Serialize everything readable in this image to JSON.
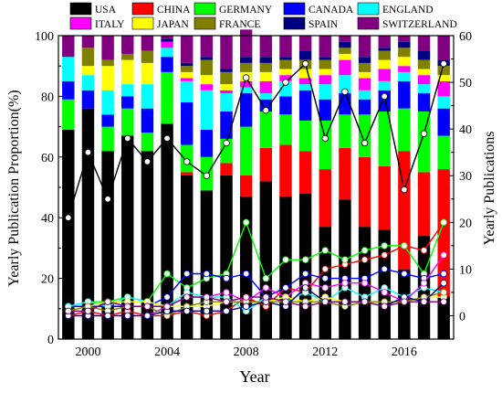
{
  "chart_data": {
    "type": "bar",
    "subtype": "stacked-bar-with-line-overlay",
    "xlabel": "Year",
    "ylabel_left": "Yearly Publication Proportion(%)",
    "ylabel_right": "Yearly Publications",
    "y_left_lim": [
      0,
      100
    ],
    "y_left_ticks": [
      0,
      20,
      40,
      60,
      80,
      100
    ],
    "y_right_lim": [
      -5,
      60
    ],
    "y_right_ticks": [
      0,
      10,
      20,
      30,
      40,
      50,
      60
    ],
    "x_tick_labels": [
      "2000",
      "2004",
      "2008",
      "2012",
      "2016"
    ],
    "grid": false,
    "legend_position": "top",
    "categories": [
      "1999",
      "2000",
      "2001",
      "2002",
      "2003",
      "2004",
      "2005",
      "2006",
      "2007",
      "2008",
      "2009",
      "2010",
      "2011",
      "2012",
      "2013",
      "2014",
      "2015",
      "2016",
      "2017",
      "2018"
    ],
    "series": [
      {
        "name": "USA",
        "color": "#000000",
        "proportion": [
          69,
          76,
          62,
          67,
          62,
          71,
          54,
          49,
          54,
          47,
          52,
          47,
          48,
          37,
          46,
          37,
          36,
          23,
          34,
          14
        ],
        "count": [
          21,
          35,
          25,
          38,
          33,
          38,
          33,
          30,
          37,
          51,
          44,
          50,
          54,
          38,
          48,
          37,
          47,
          27,
          39,
          54
        ]
      },
      {
        "name": "CHINA",
        "color": "#ff0000",
        "proportion": [
          0,
          0,
          0,
          0,
          0,
          0,
          1,
          0,
          4,
          7,
          11,
          17,
          14,
          19,
          17,
          23,
          21,
          39,
          21,
          42
        ],
        "count": [
          0,
          1,
          0,
          1,
          0,
          0,
          1,
          0,
          1,
          4,
          2,
          6,
          5,
          10,
          11,
          12,
          13,
          15,
          14,
          20
        ]
      },
      {
        "name": "GERMANY",
        "color": "#00ff00",
        "proportion": [
          10,
          0,
          8,
          9,
          6,
          17,
          9,
          11,
          8,
          16,
          12,
          10,
          10,
          16,
          11,
          14,
          18,
          14,
          20,
          11
        ],
        "count": [
          2,
          3,
          3,
          4,
          3,
          9,
          6,
          8,
          9,
          20,
          8,
          12,
          12,
          14,
          12,
          14,
          15,
          15,
          9,
          20
        ]
      },
      {
        "name": "CANADA",
        "color": "#0000ff",
        "proportion": [
          6,
          6,
          4,
          4,
          8,
          5,
          14,
          9,
          9,
          11,
          4,
          6,
          10,
          7,
          7,
          5,
          7,
          9,
          6,
          9
        ],
        "count": [
          2,
          2,
          2,
          2,
          2,
          4,
          9,
          9,
          8,
          9,
          4,
          6,
          9,
          8,
          8,
          8,
          10,
          9,
          8,
          9
        ]
      },
      {
        "name": "ENGLAND",
        "color": "#00ffff",
        "proportion": [
          8,
          5,
          8,
          4,
          8,
          3,
          7,
          13,
          6,
          2,
          2,
          5,
          2,
          5,
          6,
          3,
          3,
          3,
          3,
          4
        ],
        "count": [
          2,
          3,
          2,
          4,
          3,
          2,
          5,
          4,
          4,
          1,
          4,
          3,
          5,
          3,
          6,
          4,
          6,
          4,
          6,
          5
        ]
      },
      {
        "name": "ITALY",
        "color": "#ff00ff",
        "proportion": [
          0,
          0,
          0,
          0,
          0,
          2,
          1,
          2,
          1,
          2,
          4,
          2,
          2,
          3,
          5,
          4,
          4,
          2,
          3,
          5
        ],
        "count": [
          0,
          0,
          0,
          0,
          0,
          2,
          4,
          4,
          5,
          3,
          6,
          4,
          7,
          6,
          7,
          7,
          5,
          3,
          7,
          13
        ]
      },
      {
        "name": "JAPAN",
        "color": "#ffff00",
        "proportion": [
          0,
          3,
          8,
          8,
          7,
          0,
          2,
          3,
          2,
          3,
          3,
          2,
          3,
          2,
          2,
          2,
          3,
          3,
          2,
          2
        ],
        "count": [
          1,
          2,
          3,
          3,
          3,
          2,
          2,
          2,
          3,
          3,
          3,
          4,
          3,
          4,
          3,
          3,
          3,
          3,
          4,
          4
        ]
      },
      {
        "name": "FRANCE",
        "color": "#808000",
        "proportion": [
          0,
          6,
          2,
          2,
          4,
          0,
          2,
          5,
          4,
          3,
          3,
          3,
          3,
          3,
          2,
          3,
          3,
          3,
          3,
          3
        ],
        "count": [
          1,
          2,
          1,
          2,
          2,
          0,
          2,
          3,
          3,
          3,
          3,
          3,
          3,
          3,
          2,
          3,
          3,
          3,
          4,
          5
        ]
      },
      {
        "name": "SPAIN",
        "color": "#000080",
        "proportion": [
          0,
          0,
          0,
          0,
          0,
          1,
          1,
          1,
          1,
          2,
          2,
          1,
          3,
          1,
          2,
          2,
          1,
          2,
          3,
          2
        ],
        "count": [
          0,
          0,
          0,
          0,
          0,
          1,
          1,
          1,
          1,
          2,
          3,
          2,
          6,
          3,
          3,
          3,
          2,
          4,
          3,
          7
        ]
      },
      {
        "name": "SWITZERLAND",
        "color": "#800080",
        "proportion": [
          7,
          4,
          8,
          6,
          5,
          1,
          9,
          7,
          11,
          9,
          7,
          7,
          5,
          7,
          2,
          7,
          4,
          2,
          5,
          8
        ],
        "count": [
          1,
          1,
          3,
          2,
          2,
          2,
          4,
          4,
          3,
          4,
          4,
          3,
          2,
          3,
          3,
          3,
          2,
          3,
          3,
          3
        ]
      }
    ]
  }
}
